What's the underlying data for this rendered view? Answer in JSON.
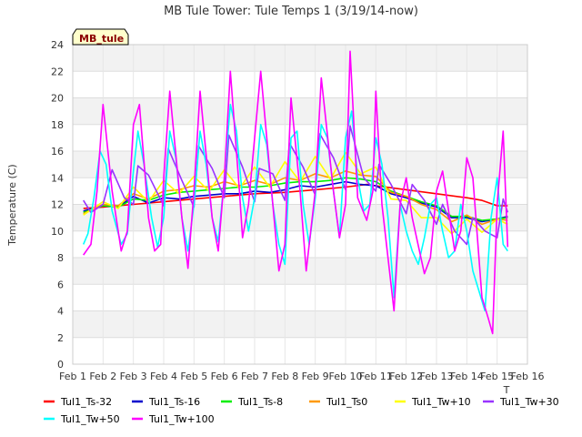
{
  "chart_data": {
    "type": "line",
    "title": "MB Tule Tower: Tule Temps 1 (3/19/14-now)",
    "tag": "MB_tule",
    "ylabel": "Temperature (C)",
    "xlabel": "Time",
    "xlabel_visible_fragment": "T",
    "xlim": [
      1,
      16
    ],
    "ylim": [
      0,
      24
    ],
    "x_ticks": [
      {
        "x": 1,
        "label": "Feb 1"
      },
      {
        "x": 2,
        "label": "Feb 2"
      },
      {
        "x": 3,
        "label": "Feb 3"
      },
      {
        "x": 4,
        "label": "Feb 4"
      },
      {
        "x": 5,
        "label": "Feb 5"
      },
      {
        "x": 6,
        "label": "Feb 6"
      },
      {
        "x": 7,
        "label": "Feb 7"
      },
      {
        "x": 8,
        "label": "Feb 8"
      },
      {
        "x": 9,
        "label": "Feb 9"
      },
      {
        "x": 10,
        "label": "Feb 10"
      },
      {
        "x": 11,
        "label": "Feb 11"
      },
      {
        "x": 12,
        "label": "Feb 12"
      },
      {
        "x": 13,
        "label": "Feb 13"
      },
      {
        "x": 14,
        "label": "Feb 14"
      },
      {
        "x": 15,
        "label": "Feb 15"
      },
      {
        "x": 16,
        "label": "Feb 16"
      }
    ],
    "y_ticks": [
      0,
      2,
      4,
      6,
      8,
      10,
      12,
      14,
      16,
      18,
      20,
      22,
      24
    ],
    "grid": true,
    "legend_position": "bottom",
    "series": [
      {
        "name": "Tul1_Ts-32",
        "color": "#ff0000",
        "x": [
          1.35,
          2,
          3,
          4,
          5,
          6,
          7,
          8,
          9,
          10,
          10.7,
          11,
          12,
          13,
          14,
          14.5,
          15,
          15.35
        ],
        "y": [
          11.7,
          11.8,
          12.0,
          12.2,
          12.4,
          12.6,
          12.8,
          12.9,
          13.1,
          13.3,
          13.5,
          13.4,
          13.1,
          12.8,
          12.5,
          12.3,
          11.9,
          11.9
        ]
      },
      {
        "name": "Tul1_Ts-16",
        "color": "#0000cc",
        "x": [
          1.35,
          2,
          2.5,
          3,
          3.5,
          4,
          4.5,
          5,
          5.5,
          6,
          6.5,
          7,
          7.5,
          8,
          8.5,
          9,
          9.5,
          10,
          10.5,
          11,
          11.5,
          12,
          12.5,
          13,
          13.5,
          14,
          14.5,
          15,
          15.35
        ],
        "y": [
          11.5,
          11.9,
          11.8,
          12.6,
          12.1,
          12.5,
          12.4,
          12.6,
          12.7,
          12.8,
          12.8,
          13.0,
          12.9,
          13.1,
          13.4,
          13.3,
          13.5,
          13.7,
          13.5,
          13.4,
          12.8,
          12.5,
          12.1,
          11.8,
          11.0,
          11.0,
          10.7,
          10.9,
          11.1
        ]
      },
      {
        "name": "Tul1_Ts-8",
        "color": "#00ee00",
        "x": [
          1.35,
          2,
          2.5,
          3,
          3.5,
          4,
          4.5,
          5,
          5.5,
          6,
          6.5,
          7,
          7.5,
          8,
          8.5,
          9,
          9.5,
          10,
          10.5,
          11,
          11.5,
          12,
          12.5,
          13,
          13.5,
          14,
          14.5,
          15,
          15.35
        ],
        "y": [
          11.4,
          11.9,
          11.8,
          12.4,
          12.3,
          12.7,
          12.9,
          13.0,
          13.1,
          13.2,
          13.3,
          13.3,
          13.4,
          13.6,
          13.7,
          13.7,
          13.8,
          14.0,
          13.9,
          13.7,
          13.0,
          12.6,
          12.2,
          11.9,
          11.1,
          11.1,
          10.8,
          10.9,
          11.0
        ]
      },
      {
        "name": "Tul1_Ts0",
        "color": "#ff9900",
        "x": [
          1.35,
          2,
          2.5,
          3,
          3.5,
          4,
          4.5,
          5,
          5.5,
          6,
          6.5,
          7,
          7.5,
          8,
          8.5,
          9,
          9.5,
          10,
          10.5,
          11,
          11.5,
          12,
          12.5,
          13,
          13.5,
          14,
          14.5,
          15,
          15.35
        ],
        "y": [
          11.3,
          12.0,
          11.9,
          12.8,
          12.4,
          13.0,
          13.1,
          13.4,
          13.3,
          13.7,
          13.4,
          13.8,
          13.5,
          14.0,
          13.8,
          14.3,
          14.0,
          14.5,
          14.2,
          14.1,
          12.9,
          12.6,
          12.0,
          11.6,
          10.7,
          11.2,
          10.5,
          10.9,
          10.8
        ]
      },
      {
        "name": "Tul1_Tw+10",
        "color": "#ffff00",
        "x": [
          1.35,
          2,
          2.5,
          3,
          3.5,
          4,
          4.5,
          5,
          5.5,
          6,
          6.5,
          7,
          7.5,
          8,
          8.5,
          9,
          9.5,
          10,
          10.5,
          11,
          11.5,
          12,
          12.5,
          13,
          13.5,
          14,
          14.5,
          15,
          15.35
        ],
        "y": [
          11.2,
          12.2,
          11.7,
          13.3,
          12.2,
          13.8,
          12.8,
          14.1,
          13.0,
          14.6,
          13.2,
          14.8,
          13.3,
          15.2,
          13.7,
          15.6,
          13.9,
          15.9,
          14.3,
          14.8,
          12.4,
          12.3,
          11.0,
          11.0,
          9.8,
          10.9,
          9.9,
          10.9,
          10.5
        ]
      },
      {
        "name": "Tul1_Tw+30",
        "color": "#9933ff",
        "x": [
          1.35,
          1.6,
          2,
          2.3,
          2.7,
          3,
          3.15,
          3.5,
          4,
          4.15,
          4.6,
          5,
          5.15,
          5.6,
          6,
          6.15,
          6.6,
          7,
          7.15,
          7.6,
          8,
          8.15,
          8.6,
          9,
          9.15,
          9.6,
          10,
          10.15,
          10.6,
          11,
          11.1,
          11.5,
          12,
          12.2,
          12.6,
          13,
          13.2,
          13.6,
          14,
          14.2,
          14.6,
          15,
          15.2,
          15.35
        ],
        "y": [
          12.3,
          11.4,
          12.0,
          14.6,
          12.5,
          12.0,
          14.9,
          14.2,
          11.9,
          16.2,
          13.8,
          11.8,
          16.4,
          14.7,
          12.5,
          17.2,
          14.8,
          12.2,
          14.7,
          14.3,
          12.3,
          16.6,
          14.8,
          12.7,
          17.3,
          15.5,
          13.1,
          17.9,
          14.0,
          13.0,
          15.0,
          13.5,
          11.3,
          13.5,
          12.3,
          10.5,
          12.0,
          10.0,
          9.0,
          11.0,
          10.0,
          9.5,
          12.4,
          11.4
        ]
      },
      {
        "name": "Tul1_Tw+50",
        "color": "#00ffff",
        "x": [
          1.35,
          1.5,
          1.7,
          1.9,
          2.1,
          2.3,
          2.6,
          2.8,
          3.0,
          3.15,
          3.35,
          3.6,
          3.8,
          4.0,
          4.2,
          4.4,
          4.6,
          4.8,
          5.0,
          5.2,
          5.4,
          5.6,
          5.8,
          6.0,
          6.2,
          6.4,
          6.6,
          6.8,
          7.0,
          7.2,
          7.4,
          7.6,
          7.8,
          8.0,
          8.2,
          8.4,
          8.6,
          8.8,
          9.0,
          9.2,
          9.4,
          9.6,
          9.8,
          10.0,
          10.2,
          10.4,
          10.6,
          10.8,
          11.0,
          11.2,
          11.4,
          11.6,
          11.8,
          12.0,
          12.2,
          12.4,
          12.6,
          12.8,
          13.0,
          13.2,
          13.4,
          13.6,
          13.8,
          14.0,
          14.2,
          14.4,
          14.6,
          14.8,
          15.0,
          15.2,
          15.35
        ],
        "y": [
          9.0,
          9.8,
          12.5,
          16.0,
          15.0,
          11.5,
          9.0,
          9.8,
          14.5,
          17.5,
          15.0,
          11.0,
          8.8,
          11.0,
          17.5,
          15.5,
          11.0,
          8.5,
          12.0,
          17.5,
          15.0,
          11.0,
          9.2,
          14.0,
          19.5,
          17.5,
          12.5,
          10.0,
          12.5,
          18.0,
          16.5,
          12.0,
          9.0,
          7.5,
          17.0,
          17.5,
          12.0,
          9.0,
          12.5,
          18.0,
          17.0,
          13.0,
          9.5,
          17.0,
          19.0,
          14.0,
          11.5,
          12.0,
          17.0,
          15.0,
          11.0,
          5.0,
          12.0,
          10.0,
          8.5,
          7.5,
          9.5,
          12.0,
          12.5,
          10.0,
          8.0,
          8.5,
          12.0,
          10.0,
          7.0,
          5.5,
          4.0,
          11.0,
          14.0,
          9.0,
          8.5
        ]
      },
      {
        "name": "Tul1_Tw+100",
        "color": "#ff00ff",
        "x": [
          1.35,
          1.6,
          1.8,
          2.0,
          2.3,
          2.6,
          2.8,
          3.0,
          3.2,
          3.5,
          3.7,
          3.9,
          4.0,
          4.2,
          4.6,
          4.8,
          5.0,
          5.2,
          5.6,
          5.8,
          6.0,
          6.2,
          6.5,
          6.6,
          6.8,
          7.0,
          7.2,
          7.6,
          7.8,
          8.0,
          8.2,
          8.5,
          8.7,
          9.0,
          9.2,
          9.6,
          9.8,
          10.0,
          10.15,
          10.4,
          10.7,
          10.9,
          11.0,
          11.2,
          11.6,
          11.8,
          12.0,
          12.2,
          12.6,
          12.8,
          13.0,
          13.2,
          13.6,
          13.8,
          14.0,
          14.2,
          14.5,
          14.7,
          14.85,
          15.0,
          15.2,
          15.35
        ],
        "y": [
          8.2,
          9.0,
          13.0,
          19.5,
          13.0,
          8.5,
          10.0,
          18.0,
          19.5,
          11.0,
          8.5,
          9.0,
          14.0,
          20.5,
          11.0,
          7.2,
          13.0,
          20.5,
          11.0,
          8.5,
          14.0,
          22.0,
          13.0,
          9.5,
          12.0,
          17.0,
          22.0,
          12.0,
          7.0,
          9.0,
          20.0,
          13.0,
          7.0,
          13.0,
          21.5,
          13.0,
          9.5,
          12.0,
          23.5,
          12.5,
          10.8,
          13.0,
          20.5,
          12.0,
          4.0,
          12.0,
          14.0,
          11.0,
          6.8,
          8.0,
          13.0,
          14.5,
          8.5,
          10.0,
          15.5,
          14.0,
          5.0,
          3.5,
          2.3,
          12.0,
          17.5,
          8.8
        ]
      }
    ]
  }
}
